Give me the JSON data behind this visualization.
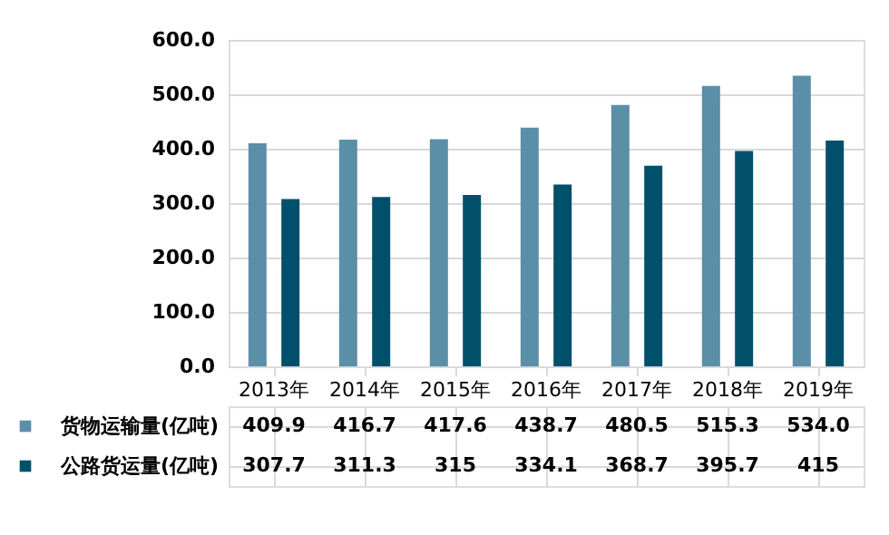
{
  "chart_data": {
    "type": "bar",
    "categories": [
      "2013年",
      "2014年",
      "2015年",
      "2016年",
      "2017年",
      "2018年",
      "2019年"
    ],
    "series": [
      {
        "name": "货物运输量(亿吨)",
        "color": "#5b8fa8",
        "values": [
          409.9,
          416.7,
          417.6,
          438.7,
          480.5,
          515.3,
          534.0
        ],
        "value_labels": [
          "409.9",
          "416.7",
          "417.6",
          "438.7",
          "480.5",
          "515.3",
          "534.0"
        ]
      },
      {
        "name": "公路货运量(亿吨)",
        "color": "#00506b",
        "values": [
          307.7,
          311.3,
          315,
          334.1,
          368.7,
          395.7,
          415
        ],
        "value_labels": [
          "307.7",
          "311.3",
          "315",
          "334.1",
          "368.7",
          "395.7",
          "415"
        ]
      }
    ],
    "ylim": [
      0,
      600
    ],
    "yticks": [
      {
        "value": 0,
        "label": "0.0"
      },
      {
        "value": 100,
        "label": "100.0"
      },
      {
        "value": 200,
        "label": "200.0"
      },
      {
        "value": 300,
        "label": "300.0"
      },
      {
        "value": 400,
        "label": "400.0"
      },
      {
        "value": 500,
        "label": "500.0"
      },
      {
        "value": 600,
        "label": "600.0"
      }
    ],
    "grid": "y",
    "legend": "bottom"
  }
}
